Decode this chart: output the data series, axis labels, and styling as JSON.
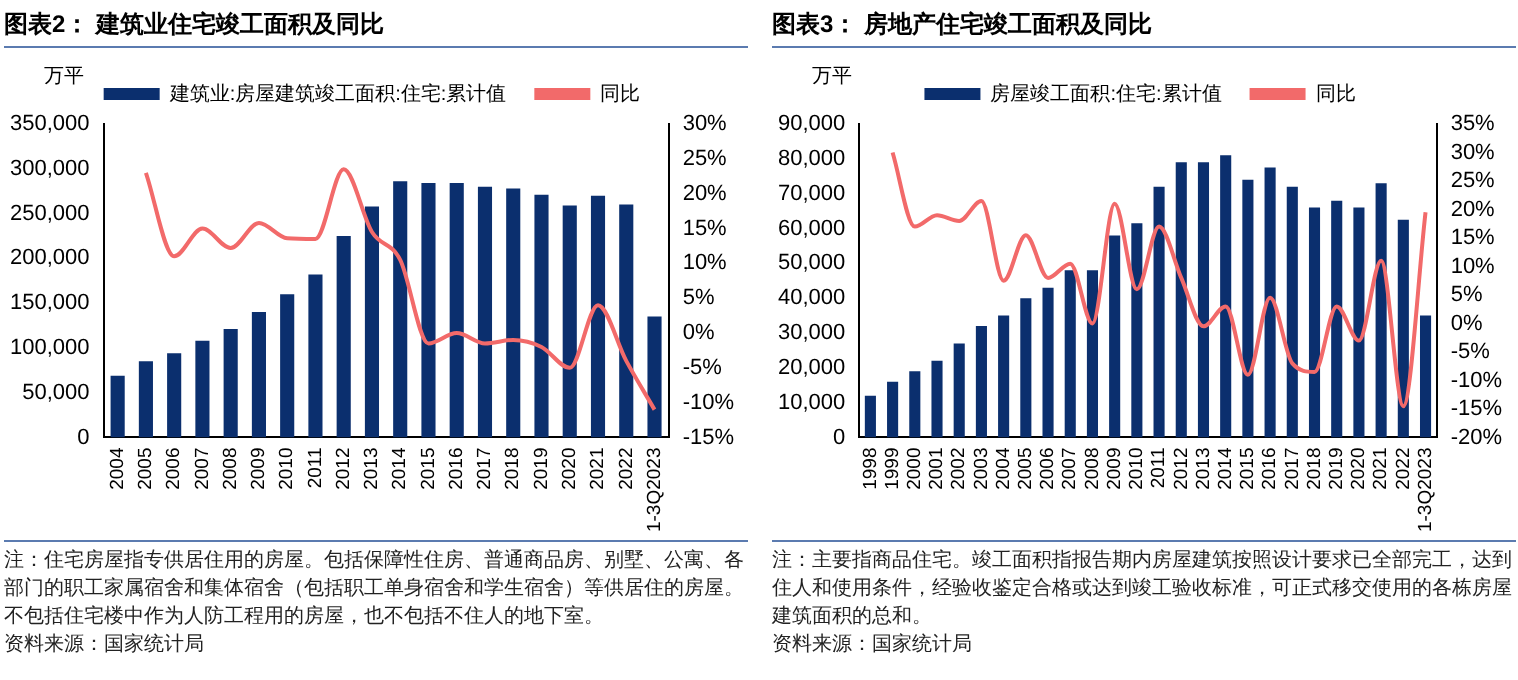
{
  "chart_data": [
    {
      "type": "bar",
      "title": "图表2： 建筑业住宅竣工面积及同比",
      "ylabel": "万平",
      "legend": "top",
      "marker": "none",
      "categories": [
        "2004",
        "2005",
        "2006",
        "2007",
        "2008",
        "2009",
        "2010",
        "2011",
        "2012",
        "2013",
        "2014",
        "2015",
        "2016",
        "2017",
        "2018",
        "2019",
        "2020",
        "2021",
        "2022",
        "1-3Q2023"
      ],
      "series": [
        {
          "name": "建筑业:房屋建筑竣工面积:住宅:累计值",
          "color": "#0b2f6e",
          "values": [
            69000,
            85000,
            94000,
            108000,
            121000,
            140000,
            160000,
            182000,
            225000,
            258000,
            286000,
            284000,
            284000,
            280000,
            278000,
            271000,
            259000,
            270000,
            260000,
            135000
          ]
        },
        {
          "name": "同比",
          "type": "line",
          "axis": "y2",
          "color": "#f26a6a",
          "values": [
            null,
            23,
            11,
            15,
            12.2,
            15.8,
            13.6,
            13.5,
            23.5,
            14.5,
            10.5,
            -1.5,
            0,
            -1.5,
            -1,
            -2,
            -5,
            4,
            -4,
            -11
          ]
        }
      ],
      "ylim": [
        0,
        350000
      ],
      "yticks": [
        0,
        {
          "value": 50000,
          "label": "50,000"
        },
        {
          "value": 100000,
          "label": "100,000"
        },
        {
          "value": 150000,
          "label": "150,000"
        },
        {
          "value": 200000,
          "label": "200,000"
        },
        {
          "value": 250000,
          "label": "250,000"
        },
        {
          "value": 300000,
          "label": "300,000"
        },
        {
          "value": 350000,
          "label": "350,000"
        }
      ],
      "y2lim": [
        -15,
        30
      ],
      "y2ticks": [
        {
          "value": -15,
          "label": "-15%"
        },
        {
          "value": -10,
          "label": "-10%"
        },
        {
          "value": -5,
          "label": "-5%"
        },
        {
          "value": 0,
          "label": "0%"
        },
        {
          "value": 5,
          "label": "5%"
        },
        {
          "value": 10,
          "label": "10%"
        },
        {
          "value": 15,
          "label": "15%"
        },
        {
          "value": 20,
          "label": "20%"
        },
        {
          "value": 25,
          "label": "25%"
        },
        {
          "value": 30,
          "label": "30%"
        }
      ],
      "annotations": [
        "注：住宅房屋指专供居住用的房屋。包括保障性住房、普通商品房、别墅、公寓、各部门的职工家属宿舍和集体宿舍（包括职工单身宿舍和学生宿舍）等供居住的房屋。不包括住宅楼中作为人防工程用的房屋，也不包括不住人的地下室。",
        "资料来源：国家统计局"
      ]
    },
    {
      "type": "bar",
      "title": "图表3： 房地产住宅竣工面积及同比",
      "ylabel": "万平",
      "legend": "top",
      "marker": "none",
      "categories": [
        "1998",
        "1999",
        "2000",
        "2001",
        "2002",
        "2003",
        "2004",
        "2005",
        "2006",
        "2007",
        "2008",
        "2009",
        "2010",
        "2011",
        "2012",
        "2013",
        "2014",
        "2015",
        "2016",
        "2017",
        "2018",
        "2019",
        "2020",
        "2021",
        "2022",
        "1-3Q2023"
      ],
      "series": [
        {
          "name": "房屋竣工面积:住宅:累计值",
          "color": "#0b2f6e",
          "values": [
            12000,
            16000,
            19000,
            22000,
            27000,
            32000,
            35000,
            40000,
            43000,
            48000,
            48000,
            58000,
            61500,
            72000,
            79000,
            79000,
            81000,
            74000,
            77500,
            72000,
            66000,
            68000,
            66000,
            73000,
            62500,
            35000
          ]
        },
        {
          "name": "同比",
          "type": "line",
          "axis": "y2",
          "color": "#f26a6a",
          "values": [
            null,
            30,
            17,
            19,
            18,
            21.5,
            7.5,
            15.5,
            8,
            10.5,
            0,
            21,
            6,
            17,
            8,
            -0.5,
            3,
            -9,
            4.5,
            -7,
            -8.5,
            3,
            -3,
            11,
            -14.5,
            19.5
          ]
        }
      ],
      "ylim": [
        0,
        90000
      ],
      "yticks": [
        0,
        {
          "value": 10000,
          "label": "10,000"
        },
        {
          "value": 20000,
          "label": "20,000"
        },
        {
          "value": 30000,
          "label": "30,000"
        },
        {
          "value": 40000,
          "label": "40,000"
        },
        {
          "value": 50000,
          "label": "50,000"
        },
        {
          "value": 60000,
          "label": "60,000"
        },
        {
          "value": 70000,
          "label": "70,000"
        },
        {
          "value": 80000,
          "label": "80,000"
        },
        {
          "value": 90000,
          "label": "90,000"
        }
      ],
      "y2lim": [
        -20,
        35
      ],
      "y2ticks": [
        {
          "value": -20,
          "label": "-20%"
        },
        {
          "value": -15,
          "label": "-15%"
        },
        {
          "value": -10,
          "label": "-10%"
        },
        {
          "value": -5,
          "label": "-5%"
        },
        {
          "value": 0,
          "label": "0%"
        },
        {
          "value": 5,
          "label": "5%"
        },
        {
          "value": 10,
          "label": "10%"
        },
        {
          "value": 15,
          "label": "15%"
        },
        {
          "value": 20,
          "label": "20%"
        },
        {
          "value": 25,
          "label": "25%"
        },
        {
          "value": 30,
          "label": "30%"
        },
        {
          "value": 35,
          "label": "35%"
        }
      ],
      "annotations": [
        "注：主要指商品住宅。竣工面积指报告期内房屋建筑按照设计要求已全部完工，达到住人和使用条件，经验收鉴定合格或达到竣工验收标准，可正式移交使用的各栋房屋建筑面积的总和。",
        "资料来源：国家统计局"
      ]
    }
  ]
}
